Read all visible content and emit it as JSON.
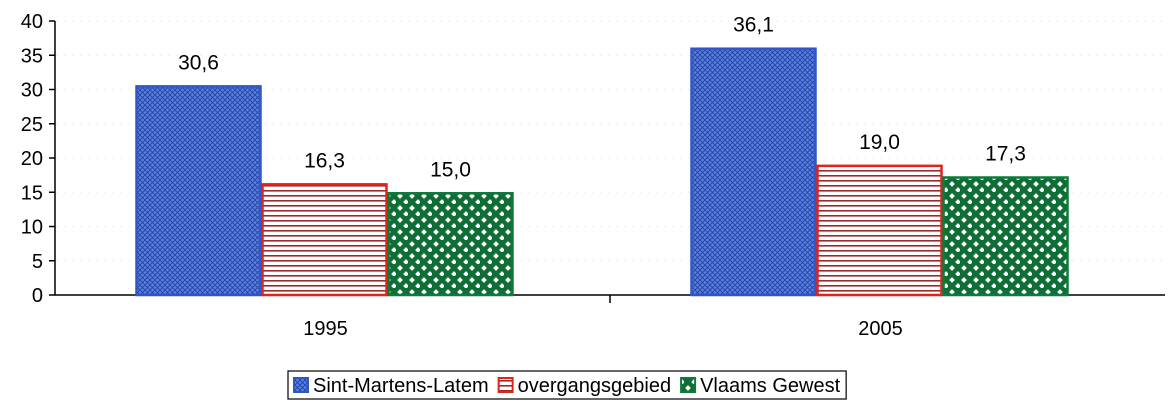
{
  "chart_data": {
    "type": "bar",
    "title": "",
    "xlabel": "",
    "ylabel": "",
    "ylim": [
      0,
      40
    ],
    "yticks": [
      0,
      5,
      10,
      15,
      20,
      25,
      30,
      35,
      40
    ],
    "categories": [
      "1995",
      "2005"
    ],
    "series": [
      {
        "name": "Sint-Martens-Latem",
        "values": [
          30.6,
          36.1
        ],
        "labels": [
          "30,6",
          "36,1"
        ],
        "color": "#2f56c8",
        "pattern": "crosshatch"
      },
      {
        "name": "overgangsgebied",
        "values": [
          16.3,
          19.0
        ],
        "labels": [
          "16,3",
          "19,0"
        ],
        "color": "#e0241c",
        "pattern": "horizontal-stripes"
      },
      {
        "name": "Vlaams Gewest",
        "values": [
          15.0,
          17.3
        ],
        "labels": [
          "15,0",
          "17,3"
        ],
        "color": "#0e7a3c",
        "pattern": "dots"
      }
    ],
    "grid": false,
    "legend_position": "bottom-center"
  }
}
